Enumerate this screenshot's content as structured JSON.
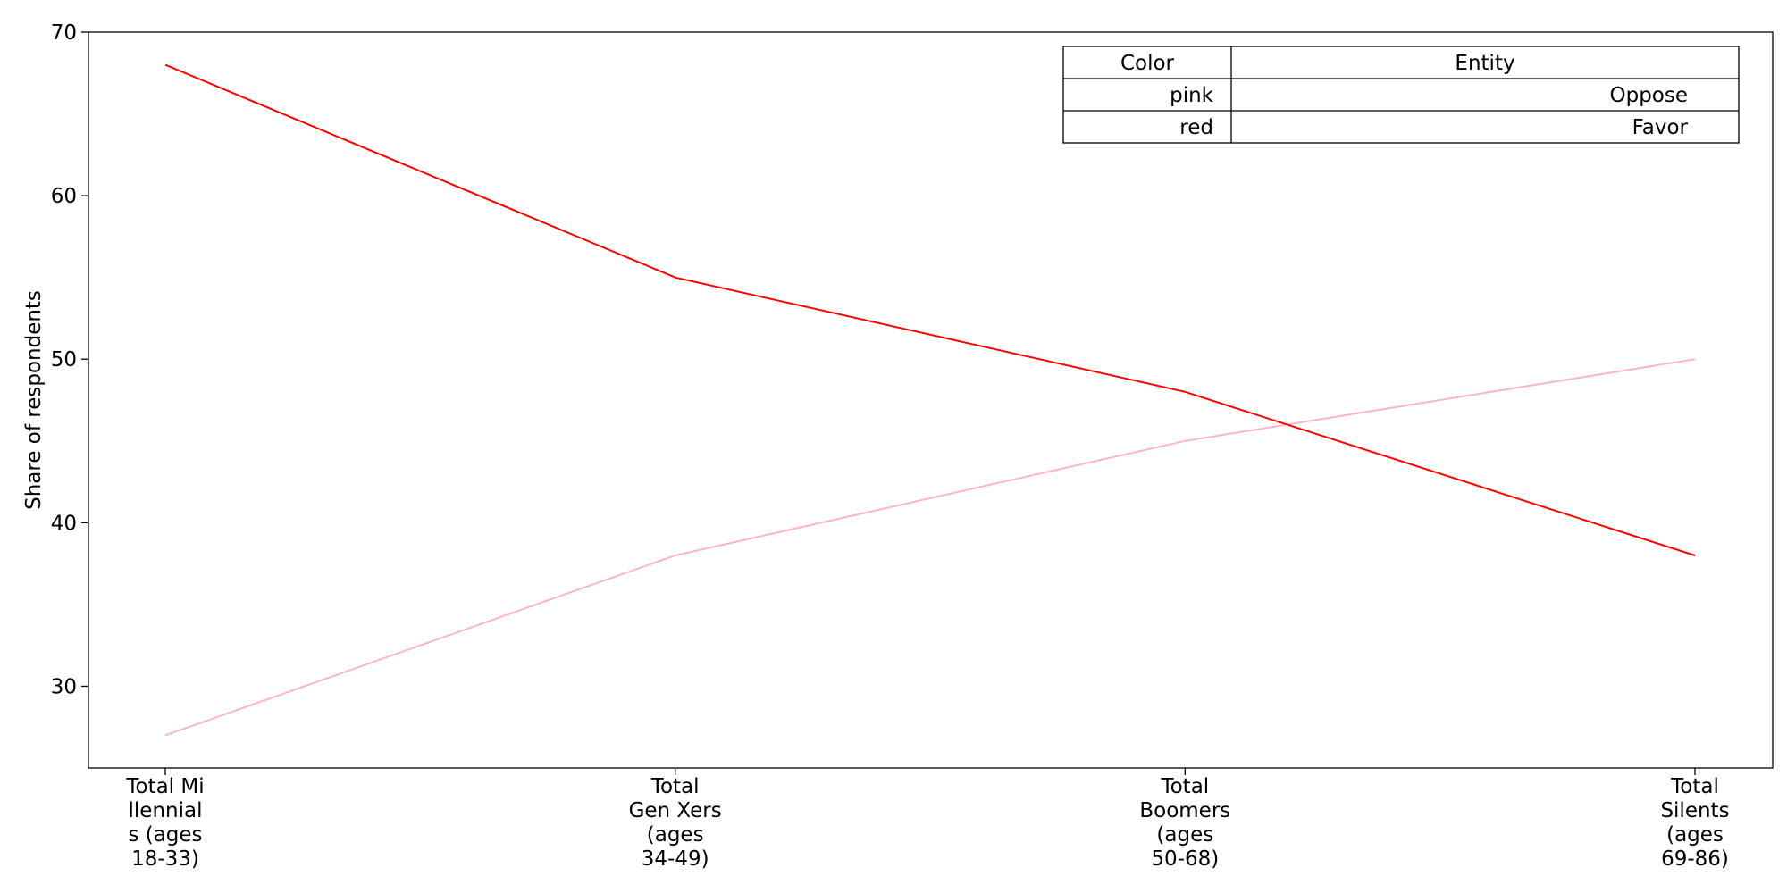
{
  "chart_data": {
    "type": "line",
    "categories": [
      [
        "Total Mi",
        "llennial",
        "s (ages",
        "18-33)"
      ],
      [
        "Total",
        "Gen Xers",
        "(ages",
        "34-49)"
      ],
      [
        "Total",
        "Boomers",
        "(ages",
        "50-68)"
      ],
      [
        "Total",
        "Silents",
        "(ages",
        "69-86)"
      ]
    ],
    "series": [
      {
        "name": "Oppose",
        "color": "#ffb6c1",
        "values": [
          27,
          38,
          45,
          50
        ]
      },
      {
        "name": "Favor",
        "color": "#ff0000",
        "values": [
          68,
          55,
          48,
          38
        ]
      }
    ],
    "title": "",
    "xlabel": "",
    "ylabel": "Share of respondents",
    "ylim": [
      25,
      70
    ],
    "yticks": [
      30,
      40,
      50,
      60,
      70
    ],
    "grid": false,
    "legend": {
      "placement": "top-right",
      "header": [
        "Color",
        "Entity"
      ],
      "rows": [
        [
          "pink",
          "Oppose"
        ],
        [
          "red",
          "Favor"
        ]
      ]
    }
  }
}
